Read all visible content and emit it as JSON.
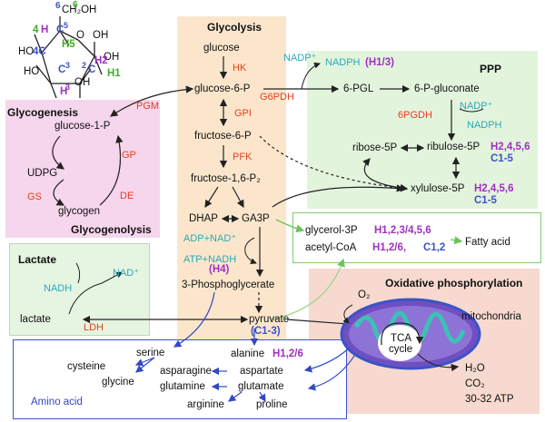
{
  "colors": {
    "enzyme": "#e2401f",
    "cofactor": "#27a9b8",
    "H": "#a12fc2",
    "G": "#3fae2a",
    "C": "#3a54c7",
    "amino": "#3348c4"
  },
  "glucose": {
    "c6": "6",
    "ch2oh": "CH₂OH",
    "c6g": "6",
    "c5": "C",
    "c5n": "5",
    "h5": "H5",
    "o_ring": "O",
    "oh1": "OH",
    "h4": "H",
    "h4n": "4",
    "oh4": "HO",
    "c4": "4C",
    "oh2": "OH",
    "c3": "C",
    "c3n": "3",
    "c2": "C",
    "c2n": "2",
    "h2": "H2",
    "c1": "C",
    "c1n": "1",
    "h1": "H1",
    "ho3": "HO",
    "oh3": "OH",
    "h3": "H",
    "h3n": "3",
    "o5": "O"
  },
  "sections": {
    "glycolysis": "Glycolysis",
    "ppp": "PPP",
    "glycogenesis": "Glycogenesis",
    "glycogenolysis": "Glycogenolysis",
    "lactate": "Lactate",
    "oxphos": "Oxidative phosphorylation",
    "amino": "Amino acid"
  },
  "glycolysis": {
    "glucose": "glucose",
    "g6p": "glucose-6-P",
    "f6p": "fructose-6-P",
    "f16p": "fructose-1,6-P₂",
    "dhap": "DHAP",
    "ga3p": "GA3P",
    "pg3": "3-Phosphoglycerate",
    "pyruvate": "pyruvate",
    "hk": "HK",
    "gpi": "GPI",
    "pfk": "PFK"
  },
  "cofactors": {
    "adp_nad": "ADP+NAD⁺",
    "atp_nadh": "ATP+NADH",
    "nadp": "NADP⁺",
    "nadph": "NADPH",
    "nadp2": "NADP⁺",
    "nadph2": "NADPH",
    "nadh": "NADH",
    "nad": "NAD⁺"
  },
  "labels": {
    "h4": "(H4)",
    "h13": "(H1/3)",
    "c13": "(C1-3)"
  },
  "ppp": {
    "pgl6": "6-PGL",
    "pg6": "6-P-gluconate",
    "g6pdh": "G6PDH",
    "pgdh6": "6PGDH",
    "ribose5p": "ribose-5P",
    "ribulose5p": "ribulose-5P",
    "xylulose5p": "xylulose-5P",
    "h2456": "H2,4,5,6",
    "c15": "C1-5",
    "h2456b": "H2,4,5,6",
    "c15b": "C1-5"
  },
  "glycogen": {
    "g1p": "glucose-1-P",
    "udpg": "UDPG",
    "glycogen": "glycogen",
    "pgm": "PGM",
    "gp": "GP",
    "gs": "GS",
    "de": "DE"
  },
  "lactate": {
    "lactate": "lactate",
    "ldh": "LDH"
  },
  "fatty": {
    "glycerol3p": "glycerol-3P",
    "acetylcoa": "acetyl-CoA",
    "fatty_acid": "Fatty acid",
    "h123456": "H1,2,3/4,5,6",
    "h126": "H1,2/6,",
    "c12": "C1,2"
  },
  "oxphos": {
    "o2": "O₂",
    "tca": "TCA",
    "cycle": "cycle",
    "mito": "mitochondria",
    "h2o": "H₂O",
    "co2": "CO₂",
    "atp": "30-32 ATP"
  },
  "amino": {
    "serine": "serine",
    "cysteine": "cysteine",
    "glycine": "glycine",
    "alanine": "alanine",
    "h126": "H1,2/6",
    "asparagine": "asparagine",
    "aspartate": "aspartate",
    "glutamine": "glutamine",
    "glutamate": "glutamate",
    "arginine": "arginine",
    "proline": "proline"
  }
}
